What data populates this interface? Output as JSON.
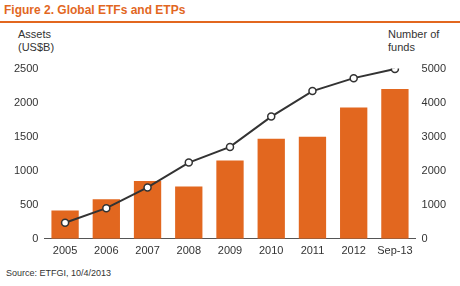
{
  "chart_data": {
    "type": "bar",
    "title": "Figure 2. Global ETFs and ETPs",
    "source": "Source: ETFGI, 10/4/2013",
    "y_label": "Assets (US$B)",
    "y2_label": "Number of funds",
    "categories": [
      "2005",
      "2006",
      "2007",
      "2008",
      "2009",
      "2010",
      "2011",
      "2012",
      "Sep-13"
    ],
    "series": [
      {
        "type": "bar",
        "color": "#e2671f",
        "values": [
          415,
          580,
          850,
          770,
          1150,
          1470,
          1500,
          1930,
          2200
        ]
      },
      {
        "type": "line",
        "axis": "y2",
        "color": "#333333",
        "marker": "circle",
        "line_style": "solid",
        "values": [
          470,
          900,
          1510,
          2240,
          2700,
          3590,
          4340,
          4720,
          4990
        ]
      }
    ],
    "ylim": [
      0,
      2500
    ],
    "yticks": [
      0,
      500,
      1000,
      1500,
      2000,
      2500
    ],
    "y2lim": [
      0,
      5000
    ],
    "y2ticks": [
      0,
      1000,
      2000,
      3000,
      4000,
      5000
    ],
    "grid": false
  }
}
